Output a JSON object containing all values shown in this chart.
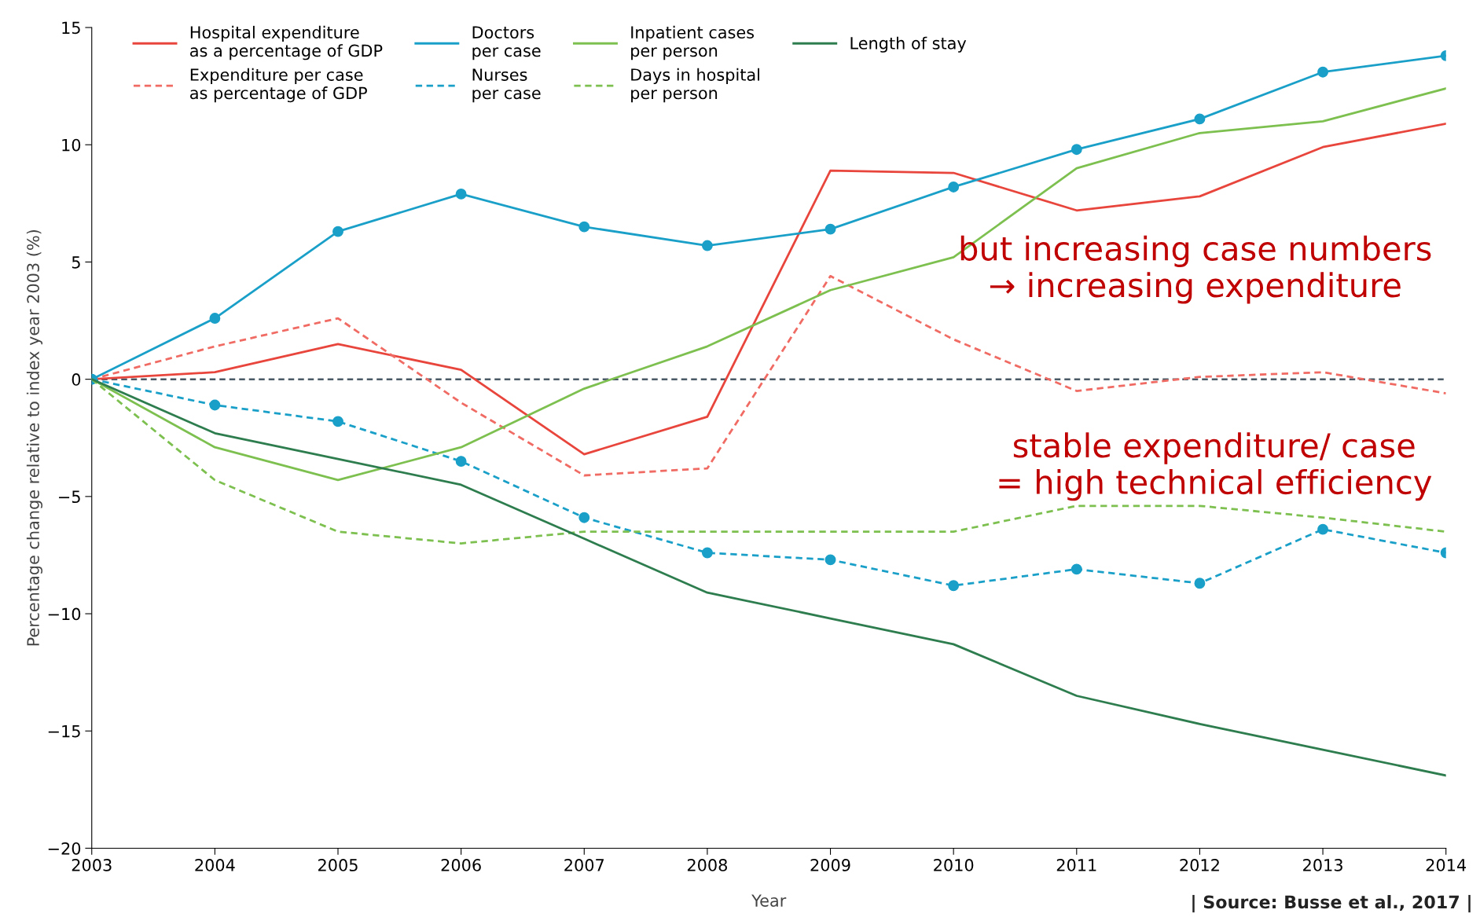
{
  "chart_data": {
    "type": "line",
    "xlabel": "Year",
    "ylabel": "Percentage change relative to index year 2003 (%)",
    "x": [
      2003,
      2004,
      2005,
      2006,
      2007,
      2008,
      2009,
      2010,
      2011,
      2012,
      2013,
      2014
    ],
    "xlim": [
      2003,
      2014
    ],
    "xticks": [
      2003,
      2004,
      2005,
      2006,
      2007,
      2008,
      2009,
      2010,
      2011,
      2012,
      2013,
      2014
    ],
    "ylim": [
      -20,
      15
    ],
    "yticks": [
      {
        "value": -20,
        "label": "−20"
      },
      {
        "value": -15,
        "label": "−15"
      },
      {
        "value": -10,
        "label": "−10"
      },
      {
        "value": -5,
        "label": "−5"
      },
      0,
      5,
      10,
      15
    ],
    "grid": false,
    "legend": "top left",
    "series": [
      {
        "name": "Hospital expenditure\nas a percentage of GDP",
        "color": "#e8453c",
        "line_style": "solid",
        "marker": "none",
        "values": [
          0,
          0.3,
          1.5,
          0.4,
          -3.2,
          -1.6,
          8.9,
          8.8,
          7.2,
          7.8,
          9.9,
          10.9
        ]
      },
      {
        "name": "Expenditure per case\nas percentage of GDP",
        "color": "#f06b63",
        "line_style": "dashed",
        "marker": "none",
        "values": [
          0,
          1.4,
          2.6,
          -1.0,
          -4.1,
          -3.8,
          4.4,
          1.7,
          -0.5,
          0.1,
          0.3,
          -0.6
        ]
      },
      {
        "name": "Doctors\nper case",
        "color": "#1aa0c8",
        "line_style": "solid",
        "marker": "circle",
        "values": [
          0,
          2.6,
          6.3,
          7.9,
          6.5,
          5.7,
          6.4,
          8.2,
          9.8,
          11.1,
          13.1,
          13.8
        ]
      },
      {
        "name": "Nurses\nper case",
        "color": "#1aa0c8",
        "line_style": "dashed",
        "marker": "circle",
        "values": [
          0,
          -1.1,
          -1.8,
          -3.5,
          -5.9,
          -7.4,
          -7.7,
          -8.8,
          -8.1,
          -8.7,
          -6.4,
          -7.4
        ]
      },
      {
        "name": "Inpatient cases\nper person",
        "color": "#7dc050",
        "line_style": "solid",
        "marker": "none",
        "values": [
          0,
          -2.9,
          -4.3,
          -2.9,
          -0.4,
          1.4,
          3.8,
          5.2,
          9.0,
          10.5,
          11.0,
          12.4
        ]
      },
      {
        "name": "Days in hospital\nper person",
        "color": "#7dc050",
        "line_style": "dashed",
        "marker": "none",
        "values": [
          0,
          -4.3,
          -6.5,
          -7.0,
          -6.5,
          -6.5,
          -6.5,
          -6.5,
          -5.4,
          -5.4,
          -5.9,
          -6.5
        ]
      },
      {
        "name": "Length of stay",
        "color": "#2e7d4f",
        "line_style": "solid",
        "marker": "none",
        "values": [
          0,
          -2.3,
          -3.4,
          -4.5,
          -6.8,
          -9.1,
          -10.2,
          -11.3,
          -13.5,
          -14.7,
          -15.8,
          -16.9
        ]
      }
    ],
    "ref_lines": [
      {
        "axis": "y",
        "value": 0,
        "color": "#4a5a66",
        "line_style": "dashed"
      }
    ],
    "annotations": [
      "but increasing case numbers\n→ increasing expenditure",
      "stable expenditure/ case\n= high technical efficiency",
      "| Source: Busse et al., 2017 |"
    ]
  }
}
